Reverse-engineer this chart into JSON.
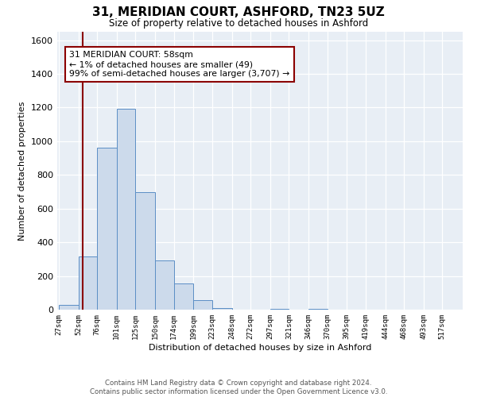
{
  "title": "31, MERIDIAN COURT, ASHFORD, TN23 5UZ",
  "subtitle": "Size of property relative to detached houses in Ashford",
  "xlabel": "Distribution of detached houses by size in Ashford",
  "ylabel": "Number of detached properties",
  "footnote1": "Contains HM Land Registry data © Crown copyright and database right 2024.",
  "footnote2": "Contains public sector information licensed under the Open Government Licence v3.0.",
  "bar_edges": [
    27,
    52,
    76,
    101,
    125,
    150,
    174,
    199,
    223,
    248,
    272,
    297,
    321,
    346,
    370,
    395,
    419,
    444,
    468,
    493,
    517
  ],
  "bar_heights": [
    30,
    315,
    960,
    1195,
    700,
    290,
    155,
    55,
    10,
    0,
    0,
    5,
    0,
    3,
    0,
    0,
    0,
    0,
    0,
    0,
    2
  ],
  "bar_color": "#ccdaeb",
  "bar_edgecolor": "#5b8ec5",
  "bg_color": "#e8eef5",
  "ylim_max": 1650,
  "yticks": [
    0,
    200,
    400,
    600,
    800,
    1000,
    1200,
    1400,
    1600
  ],
  "red_line_x": 58,
  "annotation_text": "31 MERIDIAN COURT: 58sqm\n← 1% of detached houses are smaller (49)\n99% of semi-detached houses are larger (3,707) →"
}
